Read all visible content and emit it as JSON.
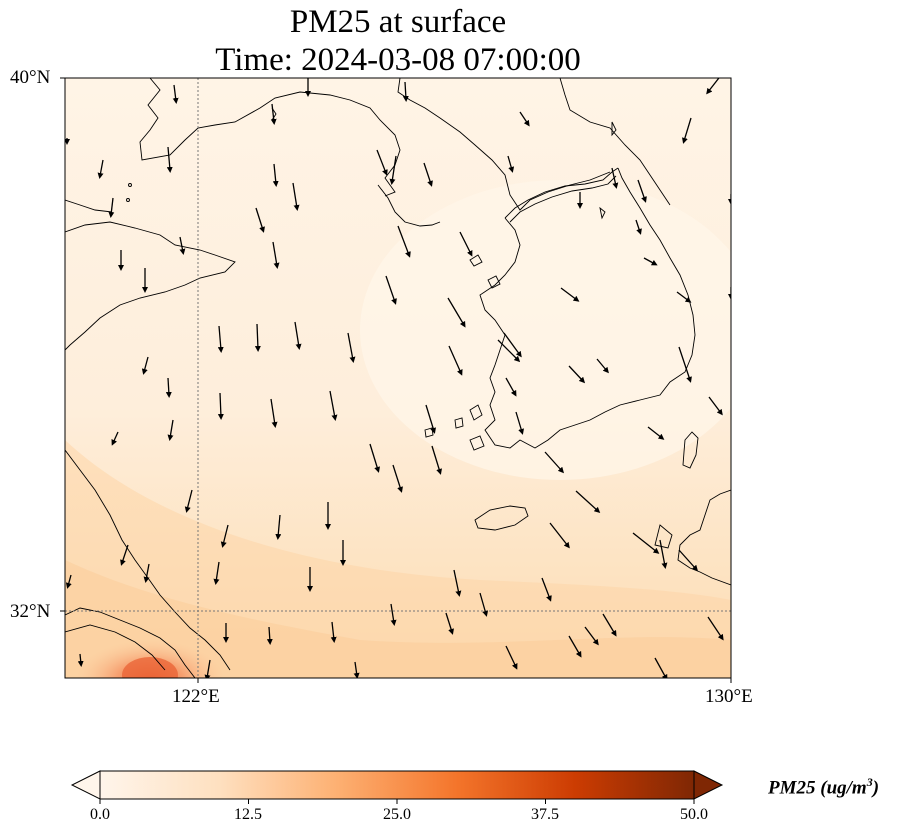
{
  "title": {
    "line1": "PM25 at surface",
    "line2": "Time: 2024-03-08 07:00:00"
  },
  "axes": {
    "lat_ticks": [
      "40°N",
      "32°N"
    ],
    "lon_ticks": [
      "122°E",
      "130°E"
    ],
    "gridlines": "dotted",
    "extent": {
      "lon_min": 114,
      "lon_max": 130,
      "lat_min": 31,
      "lat_max": 40
    }
  },
  "colorbar": {
    "ticks": [
      "0.0",
      "12.5",
      "25.0",
      "37.5",
      "50.0"
    ],
    "label_main": "PM25 (ug/m",
    "label_sup": "3",
    "label_close": ")",
    "min": 0,
    "max": 50,
    "extend": "both",
    "colormap": "Oranges",
    "colors": [
      "#fff5eb",
      "#fdd2a4",
      "#fd9141",
      "#e35309",
      "#a53603",
      "#7f2704"
    ]
  },
  "coastline_color": "#000000",
  "vector_color": "#000000"
}
